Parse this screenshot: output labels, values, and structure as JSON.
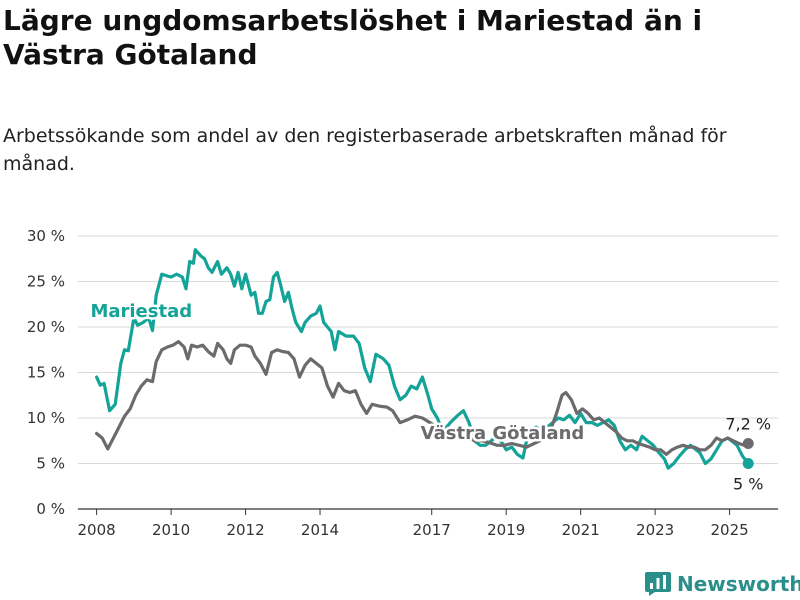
{
  "title": "Lägre ungdomsarbetslöshet i Mariestad än i Västra Götaland",
  "subtitle": "Arbetssökande som andel av den registerbaserade arbetskraften månad för månad.",
  "brand": {
    "name": "Newsworthy",
    "icon": "newsworthy-logo-icon",
    "color": "#2a8f8a"
  },
  "chart_data": {
    "type": "line",
    "x_unit": "year",
    "xlim": [
      2007.5,
      2026.3
    ],
    "ylim": [
      0,
      30
    ],
    "yticks": [
      {
        "value": 0,
        "label": "0 %"
      },
      {
        "value": 5,
        "label": "5 %"
      },
      {
        "value": 10,
        "label": "10 %"
      },
      {
        "value": 15,
        "label": "15 %"
      },
      {
        "value": 20,
        "label": "20 %"
      },
      {
        "value": 25,
        "label": "25 %"
      },
      {
        "value": 30,
        "label": "30 %"
      }
    ],
    "xticks": [
      {
        "value": 2008,
        "label": "2008"
      },
      {
        "value": 2010,
        "label": "2010"
      },
      {
        "value": 2012,
        "label": "2012"
      },
      {
        "value": 2014,
        "label": "2014"
      },
      {
        "value": 2017,
        "label": "2017"
      },
      {
        "value": 2019,
        "label": "2019"
      },
      {
        "value": 2021,
        "label": "2021"
      },
      {
        "value": 2023,
        "label": "2023"
      },
      {
        "value": 2025,
        "label": "2025"
      }
    ],
    "grid": true,
    "series": [
      {
        "name": "Mariestad",
        "color": "#14a398",
        "label_at": [
          2009.2,
          21.1
        ],
        "end_label": "5 %",
        "points": [
          [
            2008.0,
            14.5
          ],
          [
            2008.1,
            13.6
          ],
          [
            2008.2,
            13.8
          ],
          [
            2008.35,
            10.8
          ],
          [
            2008.5,
            11.5
          ],
          [
            2008.65,
            16.0
          ],
          [
            2008.75,
            17.5
          ],
          [
            2008.85,
            17.4
          ],
          [
            2009.0,
            21.0
          ],
          [
            2009.1,
            20.2
          ],
          [
            2009.25,
            20.5
          ],
          [
            2009.4,
            21.0
          ],
          [
            2009.5,
            19.6
          ],
          [
            2009.6,
            23.5
          ],
          [
            2009.75,
            25.8
          ],
          [
            2009.9,
            25.6
          ],
          [
            2010.0,
            25.5
          ],
          [
            2010.15,
            25.8
          ],
          [
            2010.3,
            25.5
          ],
          [
            2010.4,
            24.2
          ],
          [
            2010.5,
            27.2
          ],
          [
            2010.6,
            27.0
          ],
          [
            2010.65,
            28.5
          ],
          [
            2010.8,
            27.8
          ],
          [
            2010.9,
            27.5
          ],
          [
            2011.0,
            26.5
          ],
          [
            2011.1,
            26.0
          ],
          [
            2011.25,
            27.2
          ],
          [
            2011.35,
            25.8
          ],
          [
            2011.5,
            26.5
          ],
          [
            2011.6,
            25.8
          ],
          [
            2011.7,
            24.5
          ],
          [
            2011.8,
            26.0
          ],
          [
            2011.9,
            24.2
          ],
          [
            2012.0,
            25.8
          ],
          [
            2012.15,
            23.5
          ],
          [
            2012.25,
            23.8
          ],
          [
            2012.35,
            21.5
          ],
          [
            2012.45,
            21.5
          ],
          [
            2012.55,
            22.8
          ],
          [
            2012.65,
            23.0
          ],
          [
            2012.75,
            25.5
          ],
          [
            2012.85,
            26.0
          ],
          [
            2012.95,
            24.5
          ],
          [
            2013.05,
            22.8
          ],
          [
            2013.15,
            23.8
          ],
          [
            2013.25,
            22.0
          ],
          [
            2013.35,
            20.5
          ],
          [
            2013.5,
            19.5
          ],
          [
            2013.6,
            20.5
          ],
          [
            2013.75,
            21.2
          ],
          [
            2013.9,
            21.5
          ],
          [
            2014.0,
            22.3
          ],
          [
            2014.1,
            20.5
          ],
          [
            2014.3,
            19.5
          ],
          [
            2014.4,
            17.5
          ],
          [
            2014.5,
            19.5
          ],
          [
            2014.7,
            19.0
          ],
          [
            2014.9,
            19.0
          ],
          [
            2015.05,
            18.2
          ],
          [
            2015.2,
            15.5
          ],
          [
            2015.35,
            14.0
          ],
          [
            2015.5,
            17.0
          ],
          [
            2015.7,
            16.5
          ],
          [
            2015.85,
            15.8
          ],
          [
            2016.0,
            13.5
          ],
          [
            2016.15,
            12.0
          ],
          [
            2016.3,
            12.5
          ],
          [
            2016.45,
            13.5
          ],
          [
            2016.6,
            13.2
          ],
          [
            2016.75,
            14.5
          ],
          [
            2016.9,
            12.5
          ],
          [
            2017.0,
            11.0
          ],
          [
            2017.15,
            10.0
          ],
          [
            2017.3,
            8.5
          ],
          [
            2017.5,
            9.5
          ],
          [
            2017.7,
            10.3
          ],
          [
            2017.85,
            10.8
          ],
          [
            2018.0,
            9.5
          ],
          [
            2018.15,
            7.5
          ],
          [
            2018.3,
            7.0
          ],
          [
            2018.45,
            7.0
          ],
          [
            2018.6,
            7.5
          ],
          [
            2018.75,
            8.0
          ],
          [
            2018.9,
            7.2
          ],
          [
            2019.0,
            6.5
          ],
          [
            2019.15,
            6.8
          ],
          [
            2019.3,
            6.0
          ],
          [
            2019.45,
            5.6
          ],
          [
            2019.6,
            8.5
          ],
          [
            2019.8,
            9.0
          ],
          [
            2019.95,
            8.5
          ],
          [
            2020.1,
            9.0
          ],
          [
            2020.25,
            9.5
          ],
          [
            2020.4,
            10.0
          ],
          [
            2020.55,
            9.8
          ],
          [
            2020.7,
            10.3
          ],
          [
            2020.85,
            9.5
          ],
          [
            2021.0,
            10.5
          ],
          [
            2021.15,
            9.5
          ],
          [
            2021.3,
            9.5
          ],
          [
            2021.45,
            9.2
          ],
          [
            2021.6,
            9.5
          ],
          [
            2021.75,
            9.8
          ],
          [
            2021.9,
            9.2
          ],
          [
            2022.05,
            7.5
          ],
          [
            2022.2,
            6.5
          ],
          [
            2022.35,
            7.0
          ],
          [
            2022.5,
            6.5
          ],
          [
            2022.65,
            8.0
          ],
          [
            2022.8,
            7.5
          ],
          [
            2022.95,
            7.0
          ],
          [
            2023.1,
            6.2
          ],
          [
            2023.25,
            5.5
          ],
          [
            2023.35,
            4.5
          ],
          [
            2023.5,
            5.0
          ],
          [
            2023.65,
            5.8
          ],
          [
            2023.8,
            6.5
          ],
          [
            2023.95,
            7.0
          ],
          [
            2024.1,
            6.5
          ],
          [
            2024.2,
            6.2
          ],
          [
            2024.35,
            5.0
          ],
          [
            2024.5,
            5.5
          ],
          [
            2024.65,
            6.5
          ],
          [
            2024.8,
            7.5
          ],
          [
            2024.95,
            7.8
          ],
          [
            2025.05,
            7.5
          ],
          [
            2025.2,
            7.0
          ],
          [
            2025.35,
            5.8
          ],
          [
            2025.5,
            5.0
          ]
        ]
      },
      {
        "name": "Västra Götaland",
        "color": "#6b6b6e",
        "label_at": [
          2018.9,
          7.7
        ],
        "end_label": "7,2 %",
        "points": [
          [
            2008.0,
            8.3
          ],
          [
            2008.15,
            7.8
          ],
          [
            2008.3,
            6.6
          ],
          [
            2008.45,
            7.8
          ],
          [
            2008.6,
            9.0
          ],
          [
            2008.75,
            10.2
          ],
          [
            2008.9,
            11.0
          ],
          [
            2009.05,
            12.5
          ],
          [
            2009.2,
            13.5
          ],
          [
            2009.35,
            14.2
          ],
          [
            2009.5,
            14.0
          ],
          [
            2009.6,
            16.2
          ],
          [
            2009.75,
            17.5
          ],
          [
            2009.9,
            17.8
          ],
          [
            2010.05,
            18.0
          ],
          [
            2010.2,
            18.4
          ],
          [
            2010.35,
            17.8
          ],
          [
            2010.45,
            16.5
          ],
          [
            2010.55,
            18.0
          ],
          [
            2010.7,
            17.8
          ],
          [
            2010.85,
            18.0
          ],
          [
            2011.0,
            17.3
          ],
          [
            2011.15,
            16.8
          ],
          [
            2011.25,
            18.2
          ],
          [
            2011.4,
            17.5
          ],
          [
            2011.5,
            16.5
          ],
          [
            2011.6,
            16.0
          ],
          [
            2011.7,
            17.5
          ],
          [
            2011.85,
            18.0
          ],
          [
            2012.0,
            18.0
          ],
          [
            2012.15,
            17.8
          ],
          [
            2012.25,
            16.8
          ],
          [
            2012.4,
            16.0
          ],
          [
            2012.55,
            14.8
          ],
          [
            2012.7,
            17.2
          ],
          [
            2012.85,
            17.5
          ],
          [
            2013.0,
            17.3
          ],
          [
            2013.15,
            17.2
          ],
          [
            2013.3,
            16.5
          ],
          [
            2013.45,
            14.5
          ],
          [
            2013.6,
            15.8
          ],
          [
            2013.75,
            16.5
          ],
          [
            2013.9,
            16.0
          ],
          [
            2014.05,
            15.5
          ],
          [
            2014.2,
            13.5
          ],
          [
            2014.35,
            12.3
          ],
          [
            2014.5,
            13.8
          ],
          [
            2014.65,
            13.0
          ],
          [
            2014.8,
            12.8
          ],
          [
            2014.95,
            13.0
          ],
          [
            2015.1,
            11.5
          ],
          [
            2015.25,
            10.5
          ],
          [
            2015.4,
            11.5
          ],
          [
            2015.6,
            11.3
          ],
          [
            2015.8,
            11.2
          ],
          [
            2015.95,
            10.8
          ],
          [
            2016.15,
            9.5
          ],
          [
            2016.35,
            9.8
          ],
          [
            2016.55,
            10.2
          ],
          [
            2016.75,
            10.0
          ],
          [
            2016.95,
            9.5
          ],
          [
            2017.15,
            9.0
          ],
          [
            2017.35,
            8.5
          ],
          [
            2017.55,
            8.5
          ],
          [
            2017.75,
            8.2
          ],
          [
            2017.95,
            8.0
          ],
          [
            2018.15,
            7.5
          ],
          [
            2018.35,
            7.5
          ],
          [
            2018.55,
            7.3
          ],
          [
            2018.75,
            7.0
          ],
          [
            2018.95,
            7.0
          ],
          [
            2019.15,
            7.2
          ],
          [
            2019.35,
            7.0
          ],
          [
            2019.55,
            6.8
          ],
          [
            2019.75,
            7.2
          ],
          [
            2019.9,
            7.5
          ],
          [
            2020.05,
            8.0
          ],
          [
            2020.2,
            8.8
          ],
          [
            2020.35,
            10.5
          ],
          [
            2020.5,
            12.5
          ],
          [
            2020.6,
            12.8
          ],
          [
            2020.75,
            12.0
          ],
          [
            2020.9,
            10.5
          ],
          [
            2021.05,
            11.0
          ],
          [
            2021.2,
            10.5
          ],
          [
            2021.35,
            9.8
          ],
          [
            2021.5,
            10.0
          ],
          [
            2021.65,
            9.5
          ],
          [
            2021.8,
            9.0
          ],
          [
            2021.95,
            8.5
          ],
          [
            2022.1,
            7.8
          ],
          [
            2022.25,
            7.5
          ],
          [
            2022.4,
            7.5
          ],
          [
            2022.55,
            7.2
          ],
          [
            2022.7,
            7.0
          ],
          [
            2022.85,
            6.8
          ],
          [
            2023.0,
            6.5
          ],
          [
            2023.15,
            6.5
          ],
          [
            2023.3,
            6.0
          ],
          [
            2023.45,
            6.5
          ],
          [
            2023.6,
            6.8
          ],
          [
            2023.75,
            7.0
          ],
          [
            2023.9,
            6.8
          ],
          [
            2024.05,
            6.8
          ],
          [
            2024.2,
            6.5
          ],
          [
            2024.35,
            6.5
          ],
          [
            2024.5,
            7.0
          ],
          [
            2024.65,
            7.8
          ],
          [
            2024.8,
            7.5
          ],
          [
            2024.95,
            7.8
          ],
          [
            2025.1,
            7.5
          ],
          [
            2025.25,
            7.2
          ],
          [
            2025.4,
            7.0
          ],
          [
            2025.5,
            7.2
          ]
        ]
      }
    ]
  }
}
